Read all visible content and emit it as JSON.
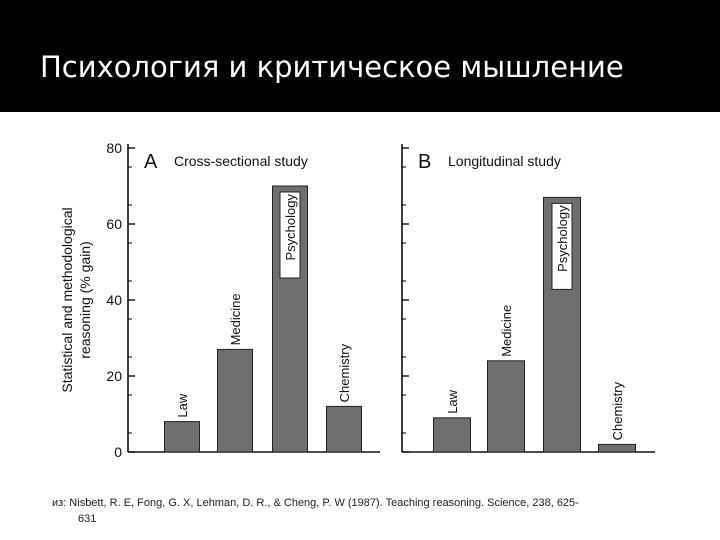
{
  "slide": {
    "title": "Психология и критическое мышление",
    "citation_line1": "из: Nisbett, R. E, Fong, G. X, Lehman, D. R., & Cheng, P. W (1987). Teaching reasoning. Science, 238, 625-",
    "citation_line2": "631"
  },
  "colors": {
    "header": "#000000",
    "title": "#ffffff",
    "bar": "#6f6f6f",
    "axis": "#111111"
  },
  "chart_data": [
    {
      "type": "bar",
      "panel_letter": "A",
      "title": "Cross-sectional study",
      "ylabel": "Statistical and methodological reasoning (% gain)",
      "ylim": [
        0,
        80
      ],
      "yticks": [
        0,
        20,
        40,
        60,
        80
      ],
      "categories": [
        "Law",
        "Medicine",
        "Psychology",
        "Chemistry"
      ],
      "values": [
        8,
        27,
        70,
        12
      ],
      "grid": false
    },
    {
      "type": "bar",
      "panel_letter": "B",
      "title": "Longitudinal study",
      "ylim": [
        0,
        80
      ],
      "yticks": [
        0,
        20,
        40,
        60,
        80
      ],
      "categories": [
        "Law",
        "Medicine",
        "Psychology",
        "Chemistry"
      ],
      "values": [
        9,
        24,
        67,
        2
      ],
      "grid": false
    }
  ]
}
